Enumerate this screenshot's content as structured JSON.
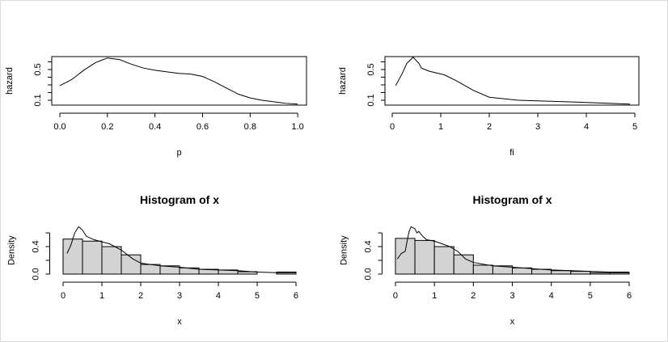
{
  "chart_data": [
    {
      "type": "line",
      "xlabel": "p",
      "ylabel": "hazard",
      "box": true,
      "x": [
        0.0,
        0.05,
        0.1,
        0.15,
        0.2,
        0.25,
        0.3,
        0.35,
        0.4,
        0.45,
        0.5,
        0.55,
        0.6,
        0.65,
        0.7,
        0.75,
        0.8,
        0.85,
        0.9,
        0.95,
        1.0
      ],
      "values": [
        0.29,
        0.37,
        0.49,
        0.59,
        0.65,
        0.63,
        0.57,
        0.52,
        0.49,
        0.47,
        0.45,
        0.44,
        0.41,
        0.34,
        0.26,
        0.18,
        0.13,
        0.1,
        0.08,
        0.06,
        0.05
      ],
      "color": "#000000",
      "xlim": [
        -0.034,
        1.037
      ],
      "xticks": [
        {
          "value": 0,
          "label": "0.0"
        },
        0.2,
        0.4,
        0.6,
        0.8,
        {
          "value": 1,
          "label": "1.0"
        }
      ],
      "ylim": [
        0.037,
        0.668
      ],
      "yticks": [
        0.1,
        0.5
      ],
      "yminorticks": [
        0.2,
        0.3,
        0.4,
        0.6
      ]
    },
    {
      "type": "line",
      "xlabel": "fi",
      "ylabel": "hazard",
      "box": true,
      "x": [
        0.07,
        0.2,
        0.3,
        0.43,
        0.55,
        0.6,
        0.75,
        1.08,
        1.33,
        1.67,
        2.0,
        2.6,
        3.6,
        4.9
      ],
      "values": [
        0.29,
        0.44,
        0.58,
        0.66,
        0.58,
        0.52,
        0.48,
        0.43,
        0.35,
        0.23,
        0.14,
        0.1,
        0.08,
        0.05
      ],
      "color": "#000000",
      "xlim": [
        -0.15,
        5.083
      ],
      "xticks": [
        0,
        1,
        2,
        3,
        4,
        5
      ],
      "ylim": [
        0.037,
        0.668
      ],
      "yticks": [
        0.1,
        0.5
      ],
      "yminorticks": [
        0.2,
        0.3,
        0.4,
        0.6
      ]
    },
    {
      "type": "histogram",
      "title": "Histogram of x",
      "xlabel": "x",
      "ylabel": "Density",
      "box": false,
      "bins": [
        0,
        0.5,
        1,
        1.5,
        2,
        2.5,
        3,
        3.5,
        4,
        4.5,
        5,
        5.5,
        6
      ],
      "values": [
        0.51,
        0.48,
        0.4,
        0.28,
        0.14,
        0.12,
        0.09,
        0.07,
        0.06,
        0.035,
        0,
        0.03
      ],
      "color": "#d3d3d3",
      "density": {
        "x": [
          0.1,
          0.2,
          0.3,
          0.4,
          0.5,
          0.6,
          0.8,
          1.0,
          1.2,
          1.5,
          1.8,
          2.0,
          2.5,
          3.0,
          3.5,
          4.0,
          4.5,
          5.0,
          5.5,
          6.0
        ],
        "y": [
          0.3,
          0.42,
          0.6,
          0.69,
          0.64,
          0.55,
          0.5,
          0.47,
          0.44,
          0.35,
          0.22,
          0.16,
          0.12,
          0.1,
          0.07,
          0.06,
          0.05,
          0.03,
          0.02,
          0.02
        ]
      },
      "xlim": [
        -0.24,
        6.24
      ],
      "xticks": [
        0,
        1,
        2,
        3,
        4,
        5,
        6
      ],
      "ylim": [
        0,
        0.69
      ],
      "yticks": [
        {
          "value": 0,
          "label": "0.0"
        },
        0.4
      ],
      "yminorticks": [
        0.2,
        0.6
      ]
    },
    {
      "type": "histogram",
      "title": "Histogram of x",
      "xlabel": "x",
      "ylabel": "Density",
      "box": false,
      "bins": [
        0,
        0.5,
        1,
        1.5,
        2,
        2.5,
        3,
        3.5,
        4,
        4.5,
        5,
        5.5,
        6
      ],
      "values": [
        0.52,
        0.49,
        0.4,
        0.28,
        0.13,
        0.12,
        0.09,
        0.07,
        0.05,
        0.04,
        0.02,
        0.02
      ],
      "color": "#d3d3d3",
      "density": {
        "x": [
          0.05,
          0.15,
          0.25,
          0.3,
          0.35,
          0.4,
          0.5,
          0.55,
          0.6,
          0.7,
          0.8,
          1.0,
          1.2,
          1.4,
          1.6,
          1.8,
          2.0,
          2.5,
          3.0,
          3.5,
          4.0,
          4.5,
          5.0,
          5.5,
          6.0
        ],
        "y": [
          0.22,
          0.3,
          0.33,
          0.48,
          0.62,
          0.69,
          0.66,
          0.6,
          0.62,
          0.55,
          0.5,
          0.48,
          0.44,
          0.4,
          0.33,
          0.22,
          0.17,
          0.12,
          0.1,
          0.08,
          0.06,
          0.05,
          0.04,
          0.03,
          0.03
        ]
      },
      "xlim": [
        -0.24,
        6.24
      ],
      "xticks": [
        0,
        1,
        2,
        3,
        4,
        5,
        6
      ],
      "ylim": [
        0,
        0.69
      ],
      "yticks": [
        {
          "value": 0,
          "label": "0.0"
        },
        0.4
      ],
      "yminorticks": [
        0.2,
        0.6
      ]
    }
  ]
}
